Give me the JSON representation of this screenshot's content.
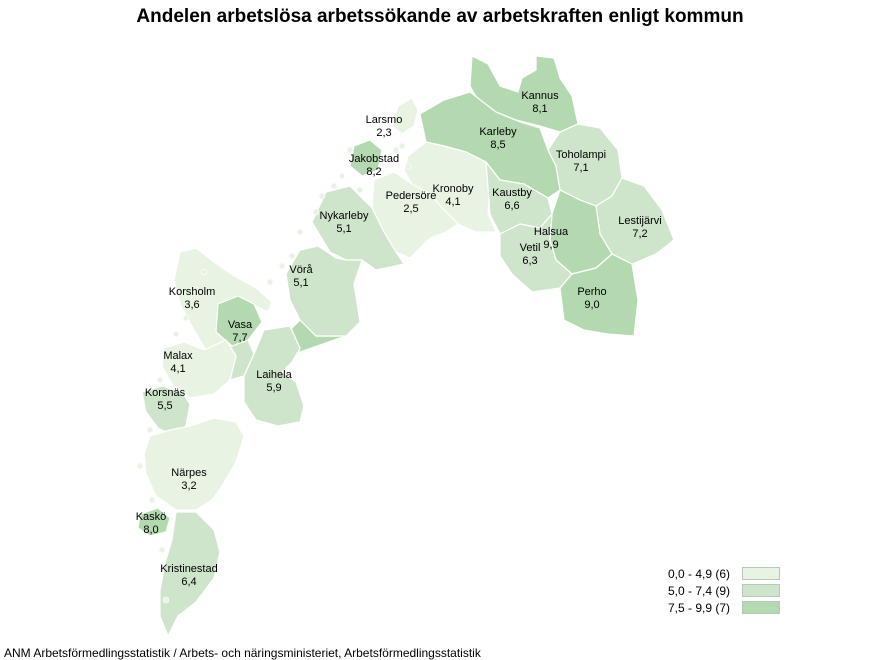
{
  "title": "Andelen arbetslösa arbetssökande av arbetskraften enligt kommun",
  "source": "ANM Arbetsförmedlingsstatistik / Arbets- och näringsministeriet, Arbetsförmedlingsstatistik",
  "colors": {
    "low": "#e8f3e3",
    "mid": "#cfe5cb",
    "high": "#b4d9b1",
    "border": "#ffffff"
  },
  "legend": [
    {
      "label": "0,0 - 4,9 (6)",
      "class": "low"
    },
    {
      "label": "5,0 - 7,4 (9)",
      "class": "mid"
    },
    {
      "label": "7,5 - 9,9 (7)",
      "class": "high"
    }
  ],
  "regions": [
    {
      "name": "Kannus",
      "value": "8,1",
      "class": "high"
    },
    {
      "name": "Larsmo",
      "value": "2,3",
      "class": "low"
    },
    {
      "name": "Karleby",
      "value": "8,5",
      "class": "high"
    },
    {
      "name": "Toholampi",
      "value": "7,1",
      "class": "mid"
    },
    {
      "name": "Jakobstad",
      "value": "8,2",
      "class": "high"
    },
    {
      "name": "Kronoby",
      "value": "4,1",
      "class": "low"
    },
    {
      "name": "Pedersöre",
      "value": "2,5",
      "class": "low"
    },
    {
      "name": "Kaustby",
      "value": "6,6",
      "class": "mid"
    },
    {
      "name": "Lestijärvi",
      "value": "7,2",
      "class": "mid"
    },
    {
      "name": "Nykarleby",
      "value": "5,1",
      "class": "mid"
    },
    {
      "name": "Halsua",
      "value": "9,9",
      "class": "high"
    },
    {
      "name": "Vetil",
      "value": "6,3",
      "class": "mid"
    },
    {
      "name": "Vörå",
      "value": "5,1",
      "class": "mid"
    },
    {
      "name": "Perho",
      "value": "9,0",
      "class": "high"
    },
    {
      "name": "Korsholm",
      "value": "3,6",
      "class": "low"
    },
    {
      "name": "Vasa",
      "value": "7,7",
      "class": "high"
    },
    {
      "name": "Malax",
      "value": "4,1",
      "class": "low"
    },
    {
      "name": "Laihela",
      "value": "5,9",
      "class": "mid"
    },
    {
      "name": "Korsnäs",
      "value": "5,5",
      "class": "mid"
    },
    {
      "name": "Närpes",
      "value": "3,2",
      "class": "low"
    },
    {
      "name": "Kaskö",
      "value": "8,0",
      "class": "high"
    },
    {
      "name": "Kristinestad",
      "value": "6,4",
      "class": "mid"
    }
  ]
}
